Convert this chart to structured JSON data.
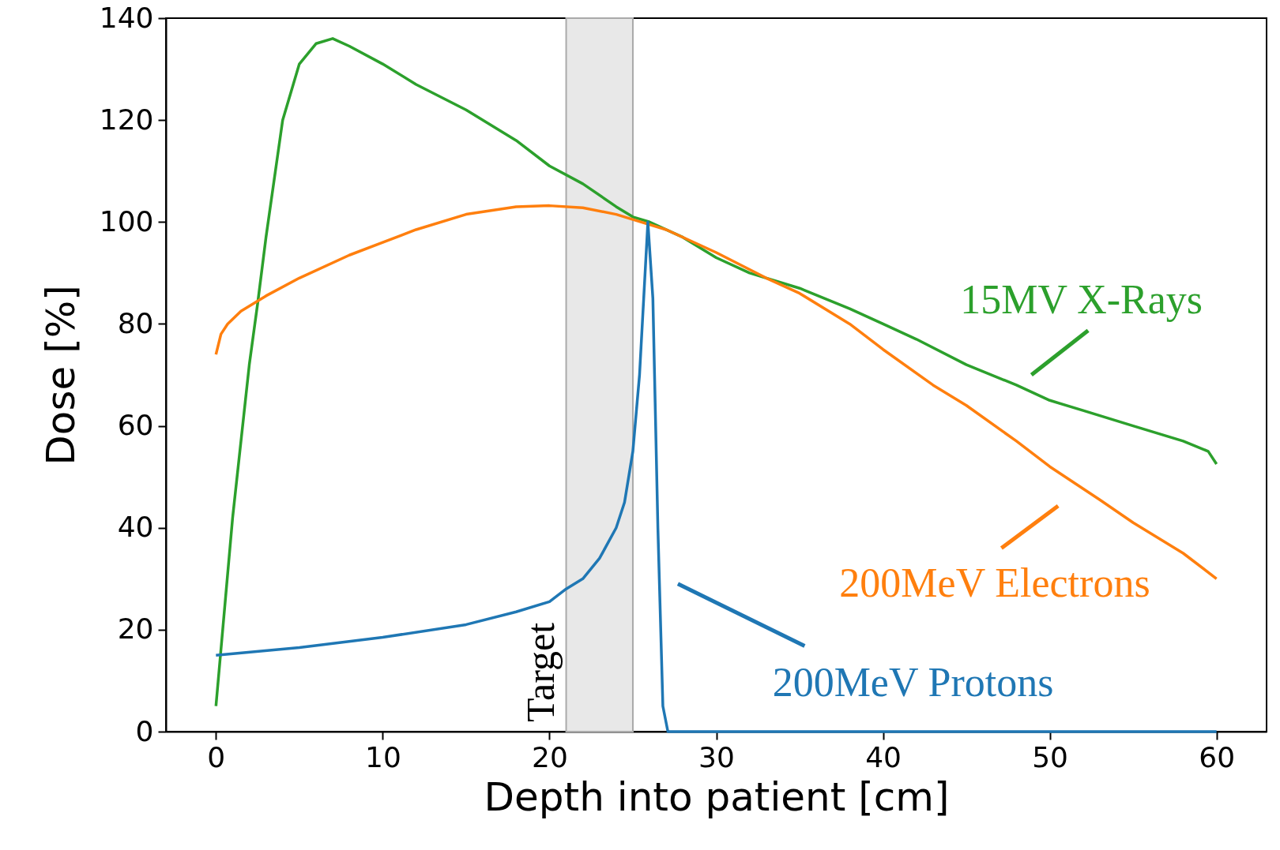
{
  "chart_data": {
    "type": "line",
    "xlabel": "Depth into patient [cm]",
    "ylabel": "Dose [%]",
    "xlim": [
      -3,
      63
    ],
    "ylim": [
      0,
      140
    ],
    "xticks": [
      0,
      10,
      20,
      30,
      40,
      50,
      60
    ],
    "yticks": [
      0,
      20,
      40,
      60,
      80,
      100,
      120,
      140
    ],
    "grid": false,
    "legend": "bottom right",
    "marker": "none",
    "line_style": "solid",
    "bands": [
      {
        "axis": "x",
        "from": 21,
        "to": 25,
        "label": "Target",
        "color": "#e8e8e8"
      }
    ],
    "series": [
      {
        "name": "15MV X-Rays",
        "color": "#2ca02c",
        "x": [
          0,
          1,
          2,
          2.5,
          3,
          4,
          5,
          6,
          7,
          8,
          10,
          12,
          15,
          18,
          20,
          22,
          24,
          25,
          26,
          28,
          30,
          32,
          35,
          38,
          40,
          42,
          45,
          48,
          50,
          52,
          55,
          58,
          59.5,
          60
        ],
        "values": [
          5,
          42,
          72,
          84,
          97,
          120,
          131,
          135,
          136,
          134.5,
          131,
          127,
          122,
          116,
          111,
          107.5,
          103,
          101,
          100,
          97,
          93,
          90,
          87,
          83,
          80,
          77,
          72,
          68,
          65,
          63,
          60,
          57,
          55,
          52.5
        ]
      },
      {
        "name": "200MeV Electrons",
        "color": "#ff7f0e",
        "x": [
          0,
          0.3,
          0.7,
          1.5,
          3,
          5,
          8,
          10,
          12,
          15,
          18,
          20,
          22,
          24,
          25,
          27,
          30,
          33,
          35,
          38,
          40,
          43,
          45,
          48,
          50,
          53,
          55,
          58,
          60
        ],
        "values": [
          74,
          78,
          80,
          82.5,
          85.5,
          89,
          93.5,
          96,
          98.5,
          101.5,
          103,
          103.2,
          102.8,
          101.5,
          100.5,
          98.5,
          94,
          89,
          86,
          80,
          75,
          68,
          64,
          57,
          52,
          45.5,
          41,
          35,
          30
        ]
      },
      {
        "name": "200MeV Protons",
        "color": "#1f77b4",
        "x": [
          0,
          5,
          10,
          15,
          18,
          20,
          21,
          22,
          23,
          24,
          24.5,
          25,
          25.4,
          25.7,
          25.9,
          26.2,
          26.5,
          26.8,
          27.1,
          30,
          40,
          50,
          60
        ],
        "values": [
          15,
          16.5,
          18.5,
          21,
          23.5,
          25.5,
          28,
          30,
          34,
          40,
          45,
          55,
          70,
          88,
          100,
          85,
          40,
          5,
          0,
          0,
          0,
          0,
          0
        ]
      }
    ]
  }
}
